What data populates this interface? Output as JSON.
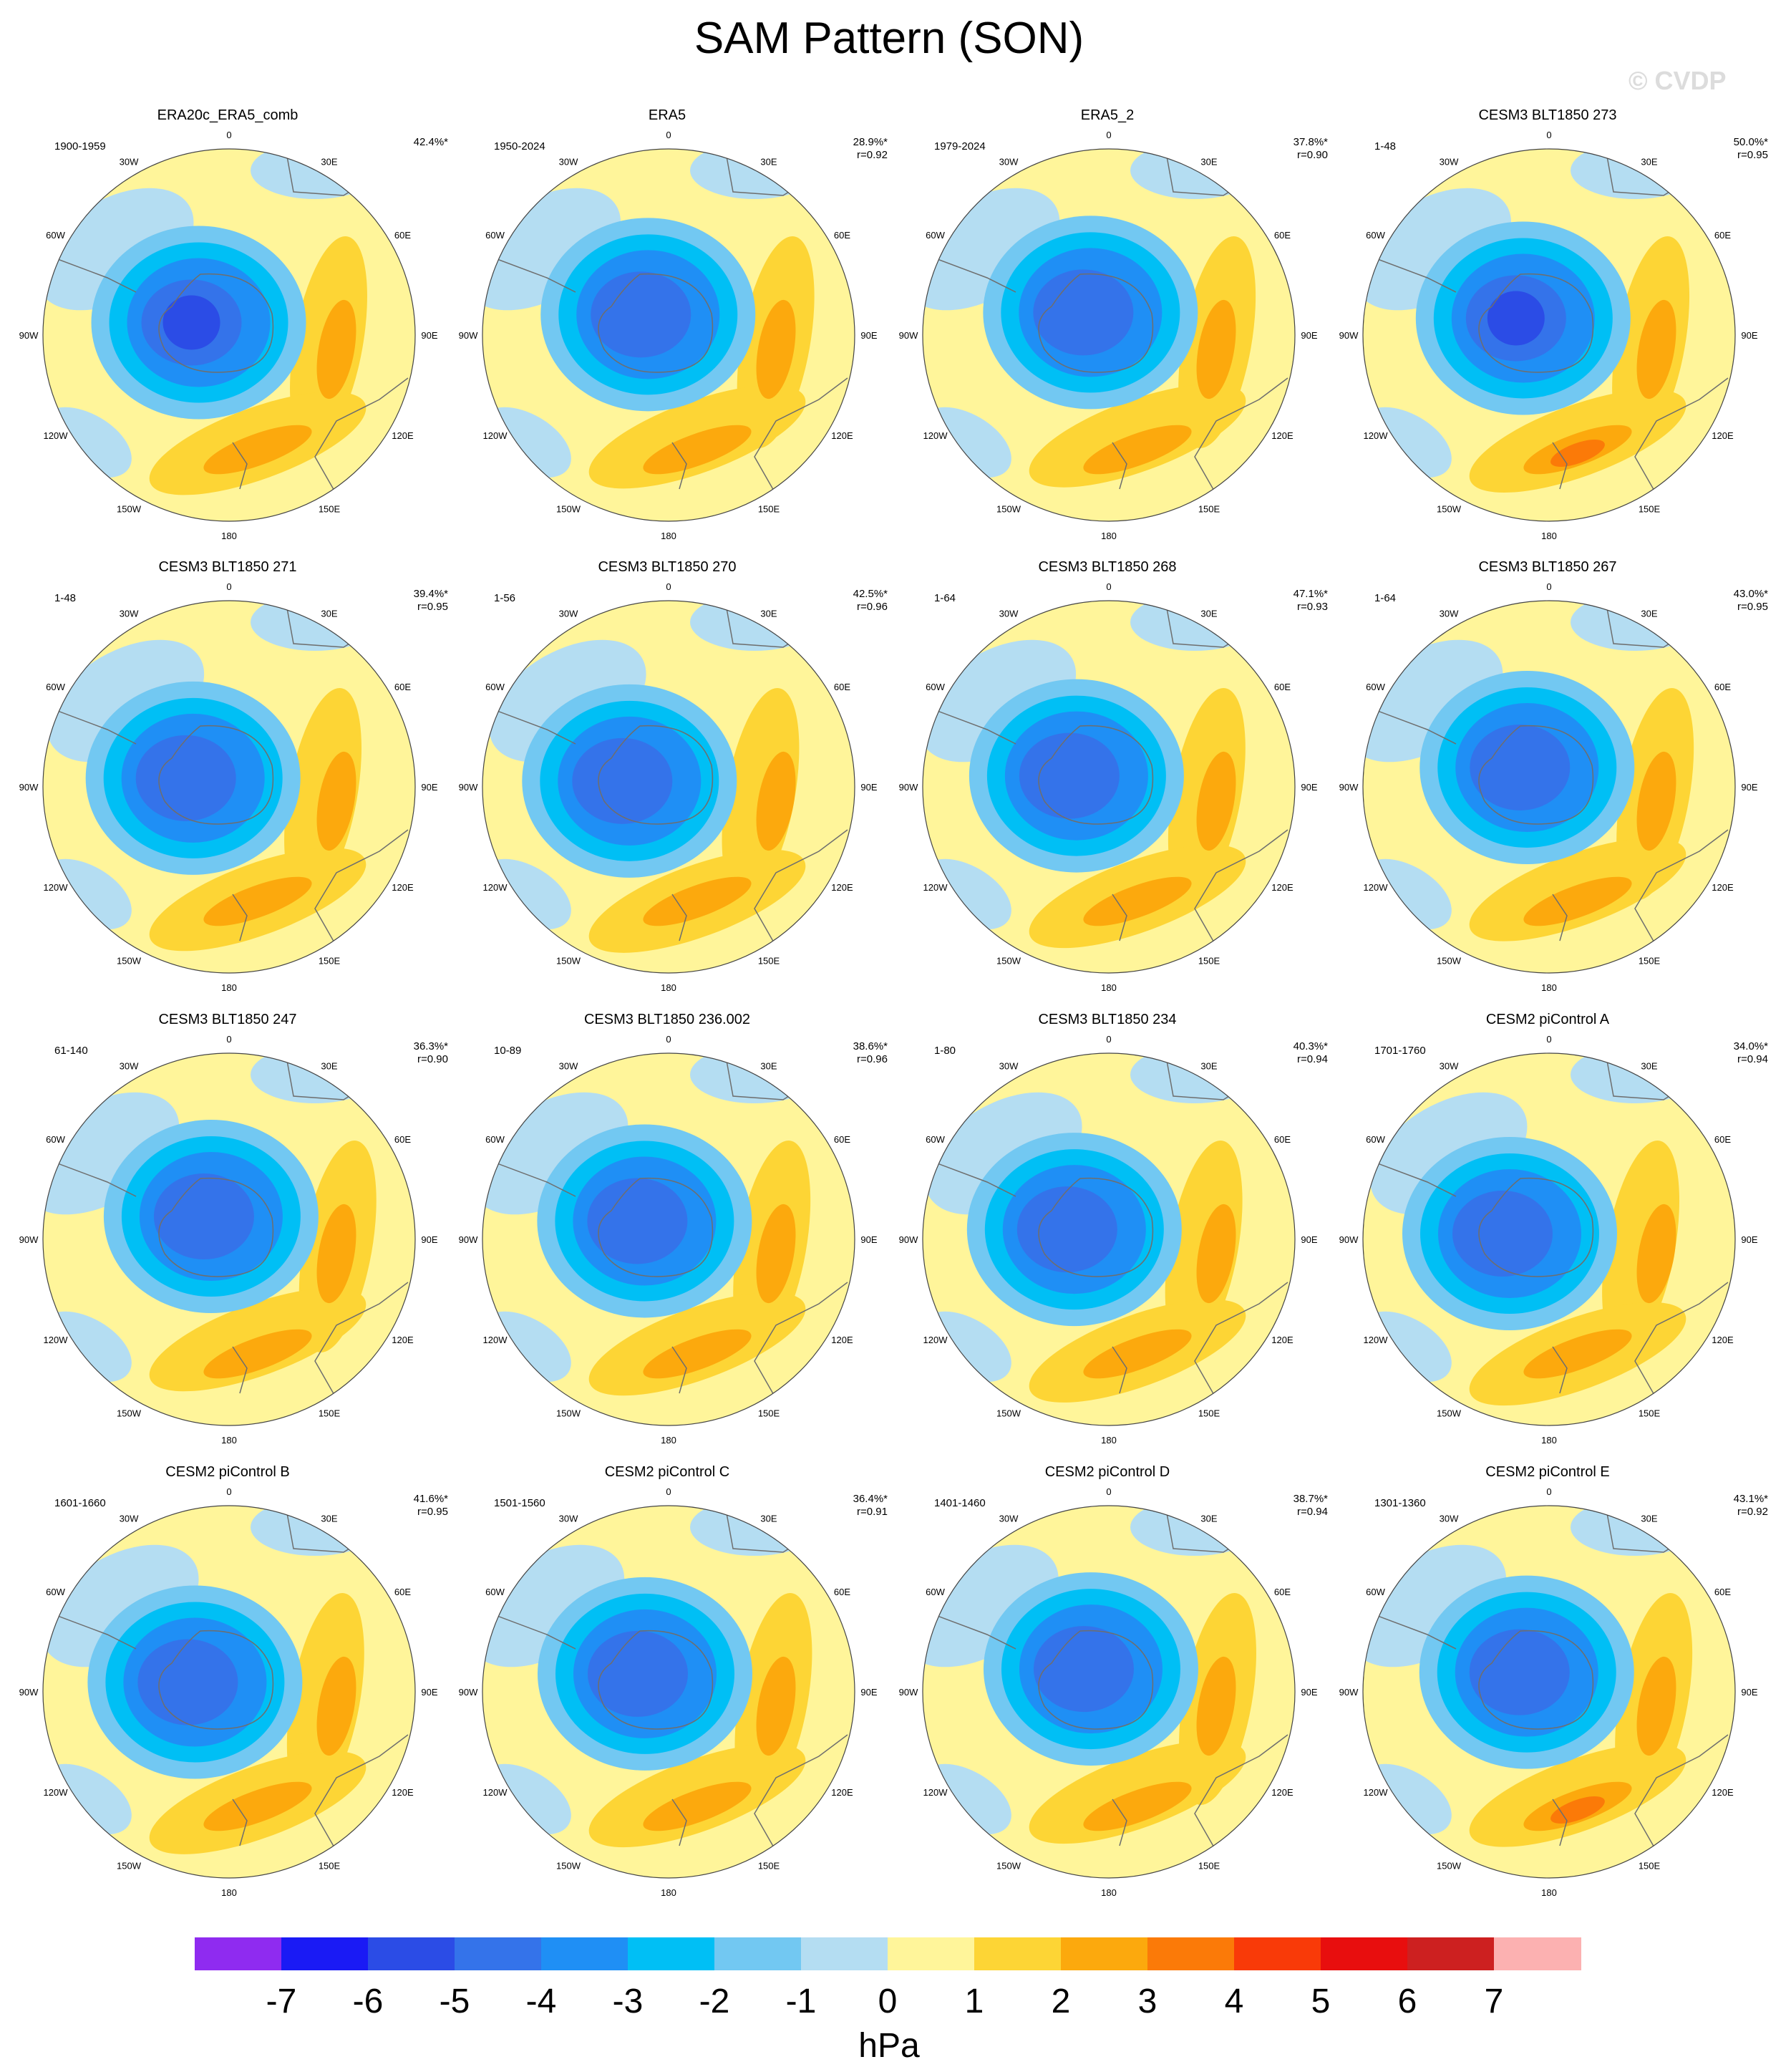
{
  "title": "SAM Pattern (SON)",
  "watermark": "© CVDP",
  "longitude_labels": [
    "0",
    "30E",
    "60E",
    "90E",
    "120E",
    "150E",
    "180",
    "150W",
    "120W",
    "90W",
    "60W",
    "30W"
  ],
  "colors": {
    "land_outline": "#6e6e6e",
    "map_border": "#444444",
    "background": "#ffffff"
  },
  "panels": [
    {
      "title": "ERA20c_ERA5_comb",
      "years": "1900-1959",
      "variance": "42.4%*",
      "r": ""
    },
    {
      "title": "ERA5",
      "years": "1950-2024",
      "variance": "28.9%*",
      "r": "r=0.92"
    },
    {
      "title": "ERA5_2",
      "years": "1979-2024",
      "variance": "37.8%*",
      "r": "r=0.90"
    },
    {
      "title": "CESM3 BLT1850 273",
      "years": "1-48",
      "variance": "50.0%*",
      "r": "r=0.95"
    },
    {
      "title": "CESM3 BLT1850 271",
      "years": "1-48",
      "variance": "39.4%*",
      "r": "r=0.95"
    },
    {
      "title": "CESM3 BLT1850 270",
      "years": "1-56",
      "variance": "42.5%*",
      "r": "r=0.96"
    },
    {
      "title": "CESM3 BLT1850 268",
      "years": "1-64",
      "variance": "47.1%*",
      "r": "r=0.93"
    },
    {
      "title": "CESM3 BLT1850 267",
      "years": "1-64",
      "variance": "43.0%*",
      "r": "r=0.95"
    },
    {
      "title": "CESM3 BLT1850 247",
      "years": "61-140",
      "variance": "36.3%*",
      "r": "r=0.90"
    },
    {
      "title": "CESM3 BLT1850 236.002",
      "years": "10-89",
      "variance": "38.6%*",
      "r": "r=0.96"
    },
    {
      "title": "CESM3 BLT1850 234",
      "years": "1-80",
      "variance": "40.3%*",
      "r": "r=0.94"
    },
    {
      "title": "CESM2 piControl A",
      "years": "1701-1760",
      "variance": "34.0%*",
      "r": "r=0.94"
    },
    {
      "title": "CESM2 piControl B",
      "years": "1601-1660",
      "variance": "41.6%*",
      "r": "r=0.95"
    },
    {
      "title": "CESM2 piControl C",
      "years": "1501-1560",
      "variance": "36.4%*",
      "r": "r=0.91"
    },
    {
      "title": "CESM2 piControl D",
      "years": "1401-1460",
      "variance": "38.7%*",
      "r": "r=0.94"
    },
    {
      "title": "CESM2 piControl E",
      "years": "1301-1360",
      "variance": "43.1%*",
      "r": "r=0.92"
    }
  ],
  "colorbar": {
    "unit": "hPa",
    "tick_labels": [
      "-7",
      "-6",
      "-5",
      "-4",
      "-3",
      "-2",
      "-1",
      "0",
      "1",
      "2",
      "3",
      "4",
      "5",
      "6",
      "7"
    ],
    "colors": [
      "#8f2bf0",
      "#1a1af5",
      "#2b4ce6",
      "#3473ea",
      "#1f8ff5",
      "#00bff5",
      "#72c8f2",
      "#b4ddf2",
      "#fff59a",
      "#fdd535",
      "#fca90d",
      "#fb7a08",
      "#f93a08",
      "#e80e0e",
      "#cd2020",
      "#fcb1b1"
    ]
  }
}
